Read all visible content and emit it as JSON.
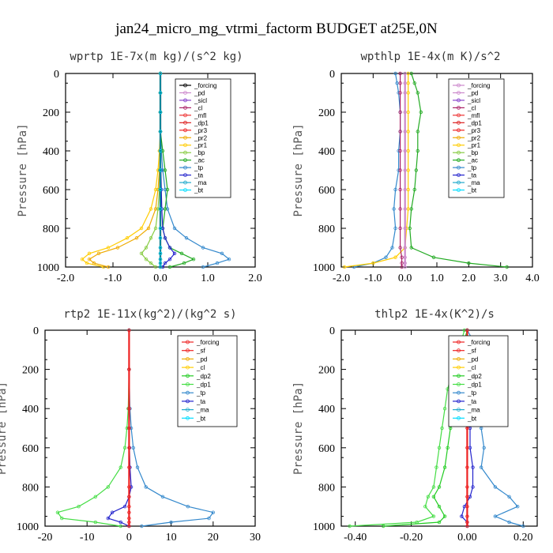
{
  "figure": {
    "title": "jan24_micro_mg_vtrmi_factorm  BUDGET at25E,0N"
  },
  "chart_data": [
    {
      "type": "line",
      "title": "wprtp  1E-7x(m kg)/(s^2 kg)",
      "ylabel": "Pressure [hPa]",
      "xlim": [
        -2,
        2
      ],
      "ylim": [
        1000,
        0
      ],
      "xticks": [
        "-2.0",
        "-1.0",
        "0.0",
        "1.0",
        "2.0"
      ],
      "yticks": [
        "0",
        "200",
        "400",
        "600",
        "800",
        "1000"
      ],
      "legend": [
        "_forcing",
        "_pd",
        "_sicl",
        "_cl",
        "_mfl",
        "_dp1",
        "_pr3",
        "_pr2",
        "_pr1",
        "_bp",
        "_ac",
        "_tp",
        "_ta",
        "_ma",
        "_bt"
      ],
      "colors": [
        "#000000",
        "#cc88cc",
        "#8844cc",
        "#aa2266",
        "#ee3333",
        "#dd2222",
        "#ee2222",
        "#eeaa00",
        "#ffcc00",
        "#88cc44",
        "#22aa22",
        "#3388cc",
        "#2222cc",
        "#22aacc",
        "#00ddff"
      ],
      "pressure": [
        0,
        100,
        200,
        300,
        400,
        500,
        600,
        700,
        800,
        850,
        900,
        930,
        960,
        980,
        1000
      ],
      "series": [
        {
          "name": "_tp",
          "values": [
            0,
            0,
            0,
            0,
            0.02,
            0.05,
            0.1,
            0.15,
            0.3,
            0.55,
            0.9,
            1.3,
            1.45,
            1.2,
            0.9
          ]
        },
        {
          "name": "_ac",
          "values": [
            0,
            0,
            0,
            0,
            0.05,
            0.1,
            0.15,
            0.1,
            0.05,
            0.1,
            0.2,
            0.45,
            0.7,
            0.5,
            0.2
          ]
        },
        {
          "name": "_pr1",
          "values": [
            0,
            0,
            0,
            0,
            -0.02,
            -0.05,
            -0.1,
            -0.2,
            -0.4,
            -0.7,
            -1.1,
            -1.5,
            -1.65,
            -1.55,
            -1.2
          ]
        },
        {
          "name": "_pr2",
          "values": [
            0,
            0,
            0,
            0,
            0,
            -0.02,
            -0.05,
            -0.1,
            -0.25,
            -0.5,
            -0.9,
            -1.3,
            -1.5,
            -1.4,
            -1.1
          ]
        },
        {
          "name": "_ta",
          "values": [
            0,
            0,
            0,
            0,
            0,
            0.01,
            0.02,
            0.03,
            0.05,
            0.1,
            0.2,
            0.3,
            0.2,
            0.1,
            0.05
          ]
        },
        {
          "name": "_bp",
          "values": [
            0,
            0,
            0,
            0,
            0,
            -0.01,
            -0.02,
            -0.05,
            -0.1,
            -0.2,
            -0.3,
            -0.4,
            -0.3,
            -0.2,
            -0.1
          ]
        },
        {
          "name": "_forcing",
          "values": [
            0,
            0,
            0,
            0,
            0,
            0,
            0,
            0,
            0,
            0,
            0,
            0,
            0,
            0,
            0
          ]
        },
        {
          "name": "_bt",
          "values": [
            0,
            0,
            0,
            0,
            0,
            0,
            0,
            0,
            0,
            0,
            0,
            0,
            0,
            0,
            0
          ]
        }
      ]
    },
    {
      "type": "line",
      "title": "wpthlp  1E-4x(m K)/s^2",
      "ylabel": "Pressure [hPa]",
      "xlim": [
        -2,
        4
      ],
      "ylim": [
        1000,
        0
      ],
      "xticks": [
        "-2.0",
        "-1.0",
        "0.0",
        "1.0",
        "2.0",
        "3.0",
        "4.0"
      ],
      "yticks": [
        "0",
        "200",
        "400",
        "600",
        "800",
        "1000"
      ],
      "legend": [
        "_forcing",
        "_pd",
        "_sicl",
        "_cl",
        "_mfl",
        "_dp1",
        "_pr3",
        "_pr2",
        "_pr1",
        "_bp",
        "_ac",
        "_tp",
        "_ta",
        "_ma",
        "_bt"
      ],
      "colors": [
        "#cc88cc",
        "#cc88cc",
        "#8844cc",
        "#aa2266",
        "#ee3333",
        "#dd2222",
        "#ee2222",
        "#eeaa00",
        "#ffcc00",
        "#88cc44",
        "#22aa22",
        "#3388cc",
        "#2222cc",
        "#22aacc",
        "#00ddff"
      ],
      "pressure": [
        0,
        50,
        100,
        200,
        300,
        400,
        500,
        600,
        700,
        800,
        900,
        950,
        980,
        1000
      ],
      "series": [
        {
          "name": "_tp",
          "values": [
            -0.3,
            -0.25,
            -0.2,
            -0.15,
            -0.15,
            -0.2,
            -0.2,
            -0.3,
            -0.35,
            -0.3,
            -0.4,
            -0.6,
            -1.0,
            -1.6
          ]
        },
        {
          "name": "_ac",
          "values": [
            0.2,
            0.3,
            0.4,
            0.5,
            0.4,
            0.4,
            0.35,
            0.3,
            0.2,
            0.15,
            0.2,
            0.9,
            2.0,
            3.2
          ]
        },
        {
          "name": "_pr1",
          "values": [
            0.1,
            0.1,
            0.1,
            0.1,
            0.1,
            0.1,
            0.1,
            0.1,
            0.1,
            0.05,
            0,
            -0.3,
            -1.0,
            -1.9
          ]
        },
        {
          "name": "_cl",
          "values": [
            -0.15,
            -0.15,
            -0.15,
            -0.15,
            -0.15,
            -0.15,
            -0.15,
            -0.15,
            -0.15,
            -0.15,
            -0.15,
            -0.1,
            -0.1,
            -0.1
          ]
        },
        {
          "name": "_forcing",
          "values": [
            0,
            0,
            0,
            0,
            0,
            0,
            0,
            0,
            0,
            0,
            0,
            0,
            0,
            0
          ]
        }
      ]
    },
    {
      "type": "line",
      "title": "rtp2  1E-11x(kg^2)/(kg^2 s)",
      "ylabel": "Pressure [hPa]",
      "xlim": [
        -20,
        30
      ],
      "ylim": [
        1000,
        0
      ],
      "xticks": [
        "-20",
        "-10",
        "0",
        "10",
        "20",
        "30"
      ],
      "yticks": [
        "0",
        "200",
        "400",
        "600",
        "800",
        "1000"
      ],
      "legend": [
        "_forcing",
        "_sf",
        "_pd",
        "_cl",
        "_dp2",
        "_dp1",
        "_tp",
        "_ta",
        "_ma",
        "_bt"
      ],
      "colors": [
        "#ee2222",
        "#ee2222",
        "#eeaa00",
        "#ffcc00",
        "#22cc22",
        "#44dd44",
        "#3388cc",
        "#2222cc",
        "#22aacc",
        "#00ddff"
      ],
      "pressure": [
        0,
        200,
        400,
        500,
        600,
        700,
        800,
        850,
        900,
        930,
        960,
        980,
        1000
      ],
      "series": [
        {
          "name": "_tp",
          "values": [
            0,
            0,
            0.2,
            0.5,
            1,
            2,
            4,
            8,
            14,
            20,
            19,
            10,
            3
          ]
        },
        {
          "name": "_dp1",
          "values": [
            0,
            0,
            -0.2,
            -0.5,
            -1,
            -2,
            -5,
            -8,
            -12,
            -17,
            -16,
            -8,
            -2
          ]
        },
        {
          "name": "_ta",
          "values": [
            0,
            0,
            0,
            0,
            0.1,
            0.2,
            0.5,
            0,
            -1,
            -4,
            -5,
            -2,
            0
          ]
        },
        {
          "name": "_forcing",
          "values": [
            0,
            0,
            0,
            0,
            0,
            0,
            0,
            0,
            0,
            0,
            0,
            0,
            0
          ]
        }
      ]
    },
    {
      "type": "line",
      "title": "thlp2  1E-4x(K^2)/s",
      "ylabel": "Pressure [hPa]",
      "xlim": [
        -0.45,
        0.25
      ],
      "ylim": [
        1000,
        0
      ],
      "xticks": [
        "-0.40",
        "-0.20",
        "0.00",
        "0.20"
      ],
      "yticks": [
        "0",
        "200",
        "400",
        "600",
        "800",
        "1000"
      ],
      "legend": [
        "_forcing",
        "_sf",
        "_pd",
        "_cl",
        "_dp2",
        "_dp1",
        "_tp",
        "_ta",
        "_ma",
        "_bt"
      ],
      "colors": [
        "#ee2222",
        "#ee2222",
        "#eeaa00",
        "#ffcc00",
        "#22cc22",
        "#44dd44",
        "#3388cc",
        "#2222cc",
        "#22aacc",
        "#00ddff"
      ],
      "pressure": [
        0,
        50,
        100,
        200,
        300,
        400,
        500,
        600,
        700,
        800,
        850,
        900,
        950,
        980,
        1000
      ],
      "series": [
        {
          "name": "_tp",
          "values": [
            0,
            0.02,
            0.03,
            0.05,
            0.06,
            0.04,
            0.05,
            0.06,
            0.05,
            0.1,
            0.15,
            0.18,
            0.1,
            0.15,
            0.2
          ]
        },
        {
          "name": "_dp1",
          "values": [
            -0.01,
            -0.02,
            -0.03,
            -0.05,
            -0.07,
            -0.08,
            -0.09,
            -0.1,
            -0.11,
            -0.12,
            -0.14,
            -0.15,
            -0.12,
            -0.18,
            -0.42
          ]
        },
        {
          "name": "_dp2",
          "values": [
            0,
            -0.01,
            -0.02,
            -0.03,
            -0.04,
            -0.05,
            -0.06,
            -0.07,
            -0.08,
            -0.1,
            -0.12,
            -0.1,
            -0.08,
            -0.1,
            -0.3
          ]
        },
        {
          "name": "_ta",
          "values": [
            0,
            0,
            0,
            0,
            0,
            0,
            0.01,
            0.01,
            0.02,
            0.02,
            0.01,
            -0.01,
            -0.02,
            0,
            0
          ]
        },
        {
          "name": "_forcing",
          "values": [
            0,
            0,
            0,
            0,
            0,
            0,
            0,
            0,
            0,
            0,
            0,
            0,
            0,
            0,
            0
          ]
        }
      ]
    }
  ]
}
